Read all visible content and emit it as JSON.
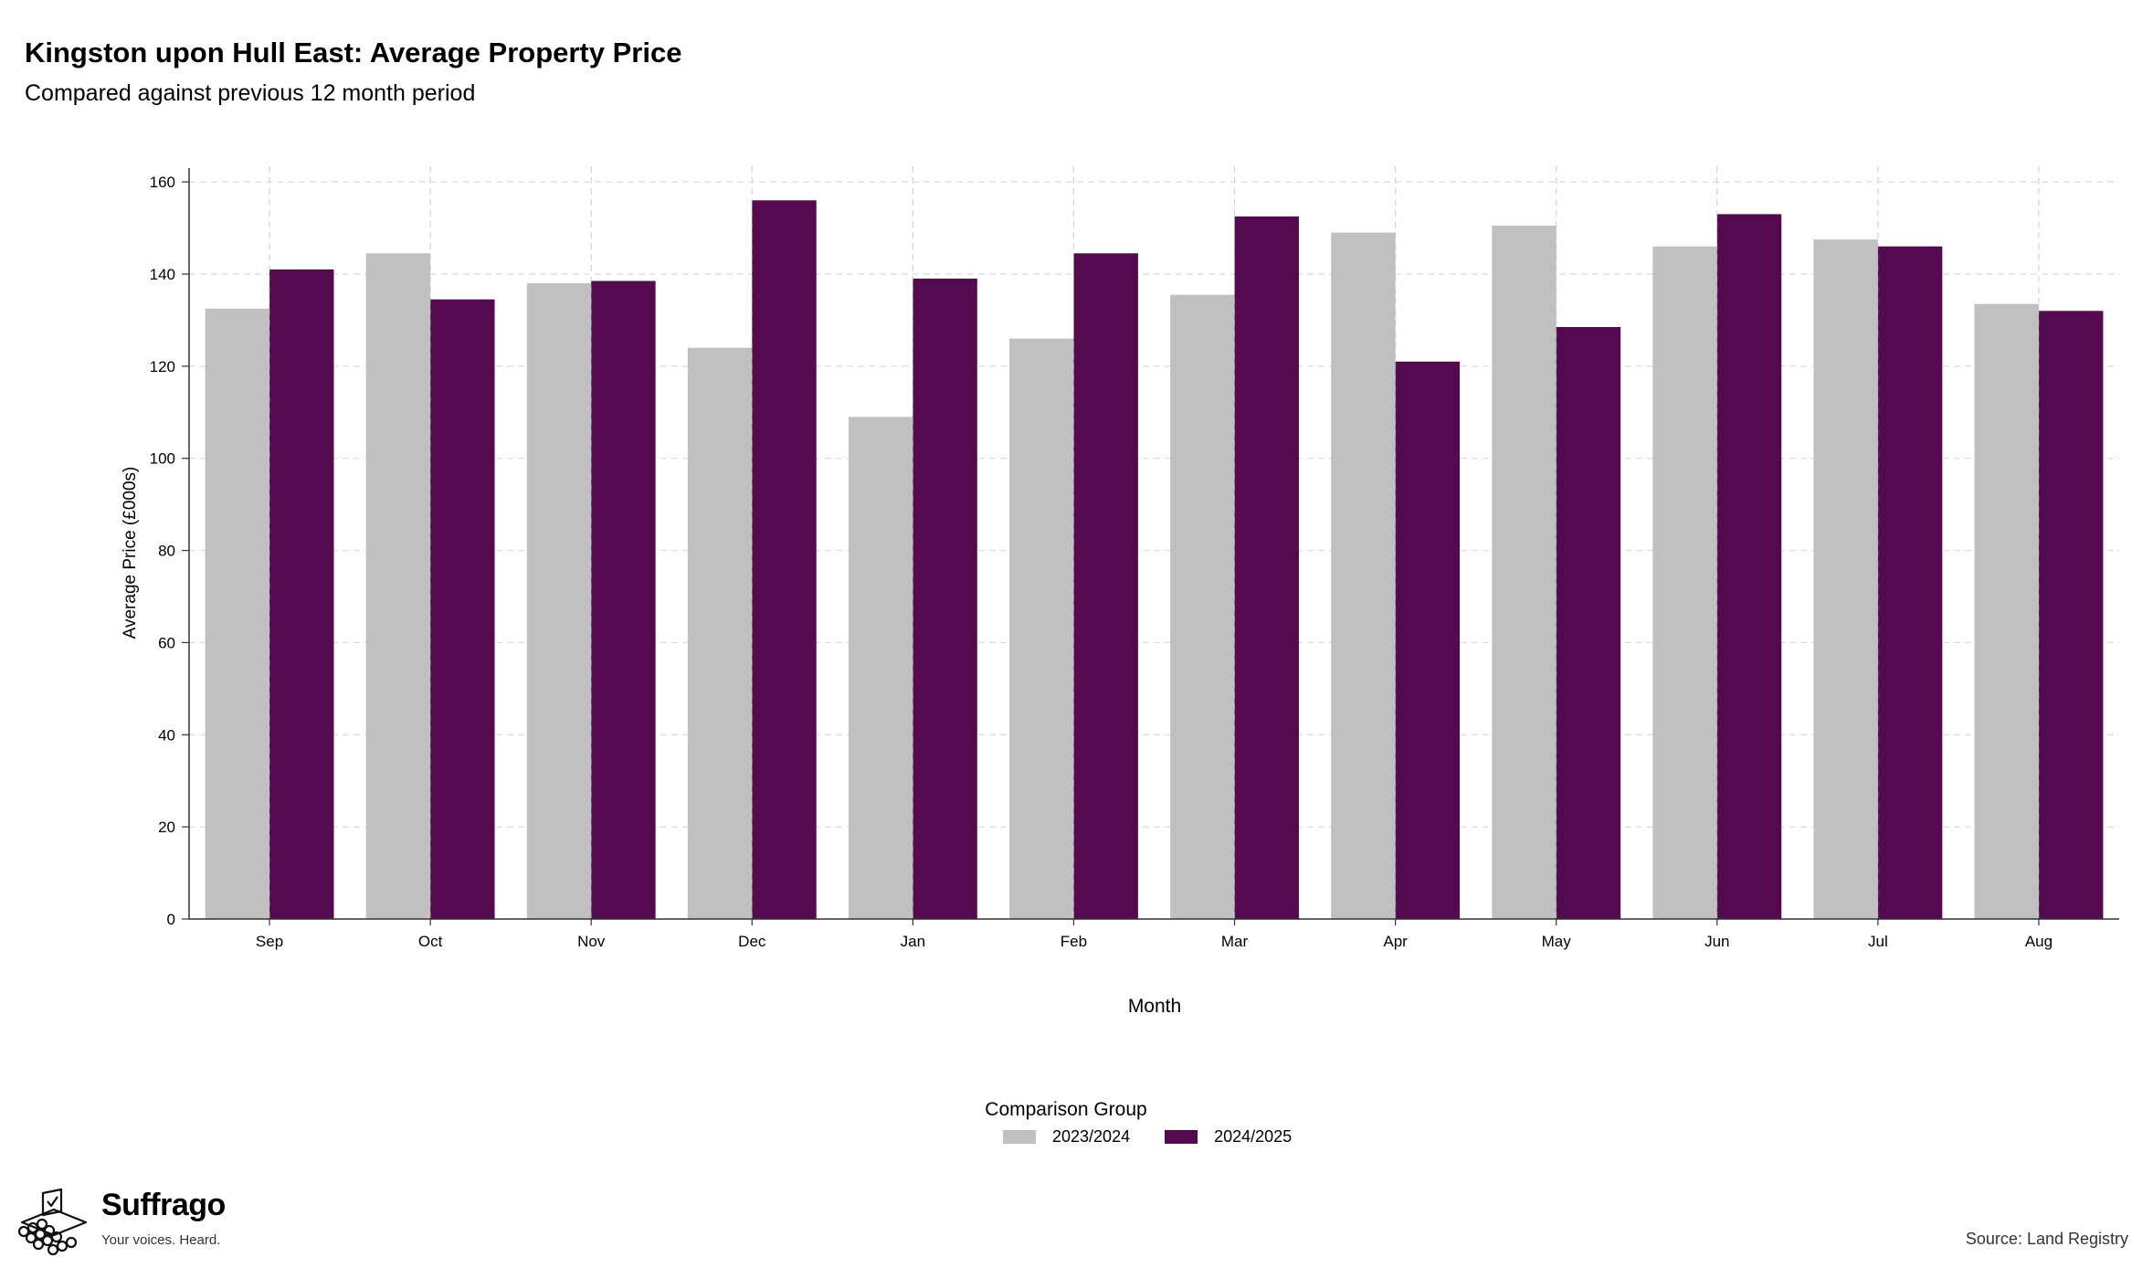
{
  "header": {
    "title": "Kingston upon Hull East: Average Property Price",
    "subtitle": "Compared against previous 12 month period"
  },
  "legend": {
    "title": "Comparison Group",
    "items": [
      {
        "label": "2023/2024",
        "color": "#c0c0c0"
      },
      {
        "label": "2024/2025",
        "color": "#550a50"
      }
    ]
  },
  "footer": {
    "brand": "Suffrago",
    "tagline": "Your voices. Heard.",
    "source": "Source: Land Registry"
  },
  "chart_data": {
    "type": "bar",
    "title": "Kingston upon Hull East: Average Property Price",
    "subtitle": "Compared against previous 12 month period",
    "xlabel": "Month",
    "ylabel": "Average Price (£000s)",
    "categories": [
      "Sep",
      "Oct",
      "Nov",
      "Dec",
      "Jan",
      "Feb",
      "Mar",
      "Apr",
      "May",
      "Jun",
      "Jul",
      "Aug"
    ],
    "series": [
      {
        "name": "2023/2024",
        "color": "#c0c0c0",
        "values": [
          132.5,
          144.5,
          138,
          124,
          109,
          126,
          135.5,
          149,
          150.5,
          146,
          147.5,
          133.5
        ]
      },
      {
        "name": "2024/2025",
        "color": "#550a50",
        "values": [
          141,
          134.5,
          138.5,
          156,
          139,
          144.5,
          152.5,
          121,
          128.5,
          153,
          146,
          132
        ]
      }
    ],
    "ylim": [
      0,
      163
    ],
    "yticks": [
      0,
      20,
      40,
      60,
      80,
      100,
      120,
      140,
      160
    ],
    "grid": true,
    "legend_position": "bottom"
  }
}
